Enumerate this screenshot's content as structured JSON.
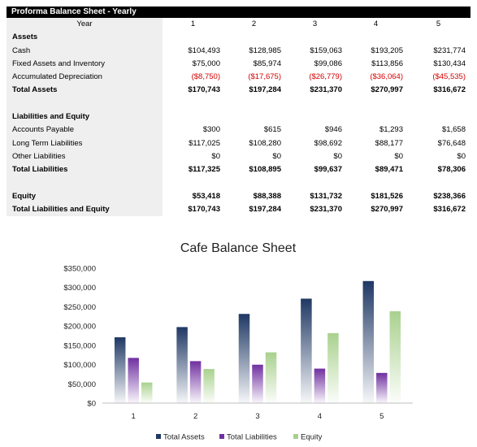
{
  "sheet": {
    "title": "Proforma Balance Sheet - Yearly",
    "year_label": "Year",
    "years": [
      "1",
      "2",
      "3",
      "4",
      "5"
    ],
    "rows": [
      {
        "label": "Assets",
        "bold": true,
        "values": []
      },
      {
        "label": "Cash",
        "values": [
          "$104,493",
          "$128,985",
          "$159,063",
          "$193,205",
          "$231,774"
        ]
      },
      {
        "label": "Fixed Assets and Inventory",
        "values": [
          "$75,000",
          "$85,974",
          "$99,086",
          "$113,856",
          "$130,434"
        ]
      },
      {
        "label": "Accumulated Depreciation",
        "negative": true,
        "values": [
          "($8,750)",
          "($17,675)",
          "($26,779)",
          "($36,064)",
          "($45,535)"
        ]
      },
      {
        "label": "Total Assets",
        "bold": true,
        "values": [
          "$170,743",
          "$197,284",
          "$231,370",
          "$270,997",
          "$316,672"
        ]
      },
      {
        "label": "",
        "values": []
      },
      {
        "label": "Liabilities and Equity",
        "bold": true,
        "values": []
      },
      {
        "label": "Accounts Payable",
        "values": [
          "$300",
          "$615",
          "$946",
          "$1,293",
          "$1,658"
        ]
      },
      {
        "label": "Long Term Liabilities",
        "values": [
          "$117,025",
          "$108,280",
          "$98,692",
          "$88,177",
          "$76,648"
        ]
      },
      {
        "label": "Other Liabilities",
        "values": [
          "$0",
          "$0",
          "$0",
          "$0",
          "$0"
        ]
      },
      {
        "label": "Total Liabilities",
        "bold": true,
        "values": [
          "$117,325",
          "$108,895",
          "$99,637",
          "$89,471",
          "$78,306"
        ]
      },
      {
        "label": "",
        "values": []
      },
      {
        "label": "Equity",
        "bold": true,
        "values": [
          "$53,418",
          "$88,388",
          "$131,732",
          "$181,526",
          "$238,366"
        ]
      },
      {
        "label": "Total Liabilities and Equity",
        "bold": true,
        "values": [
          "$170,743",
          "$197,284",
          "$231,370",
          "$270,997",
          "$316,672"
        ]
      }
    ]
  },
  "chart_data": {
    "type": "bar",
    "title": "Cafe Balance Sheet",
    "categories": [
      "1",
      "2",
      "3",
      "4",
      "5"
    ],
    "series": [
      {
        "name": "Total Assets",
        "values": [
          170743,
          197284,
          231370,
          270997,
          316672
        ],
        "color": "#1f3864"
      },
      {
        "name": "Total Liabilities",
        "values": [
          117325,
          108895,
          99637,
          89471,
          78306
        ],
        "color": "#7030a0"
      },
      {
        "name": "Equity",
        "values": [
          53418,
          88388,
          131732,
          181526,
          238366
        ],
        "color": "#a9d18e"
      }
    ],
    "ylim": [
      0,
      350000
    ],
    "yticks": [
      "$0",
      "$50,000",
      "$100,000",
      "$150,000",
      "$200,000",
      "$250,000",
      "$300,000",
      "$350,000"
    ],
    "grid": false,
    "legend_position": "bottom"
  }
}
